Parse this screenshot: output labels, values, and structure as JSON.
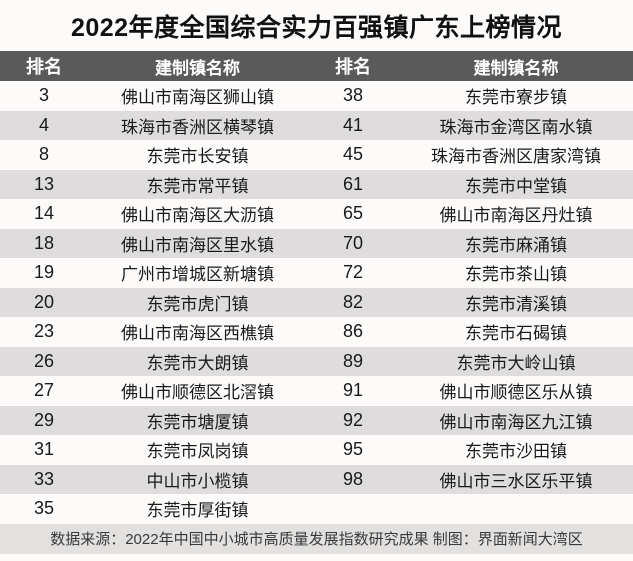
{
  "title": "2022年度全国综合实力百强镇广东上榜情况",
  "chart_data": {
    "type": "table",
    "title": "2022年度全国综合实力百强镇广东上榜情况",
    "columns": [
      "排名",
      "建制镇名称",
      "排名",
      "建制镇名称"
    ],
    "rows": [
      [
        "3",
        "佛山市南海区狮山镇",
        "38",
        "东莞市寮步镇"
      ],
      [
        "4",
        "珠海市香洲区横琴镇",
        "41",
        "珠海市金湾区南水镇"
      ],
      [
        "8",
        "东莞市长安镇",
        "45",
        "珠海市香洲区唐家湾镇"
      ],
      [
        "13",
        "东莞市常平镇",
        "61",
        "东莞市中堂镇"
      ],
      [
        "14",
        "佛山市南海区大沥镇",
        "65",
        "佛山市南海区丹灶镇"
      ],
      [
        "18",
        "佛山市南海区里水镇",
        "70",
        "东莞市麻涌镇"
      ],
      [
        "19",
        "广州市增城区新塘镇",
        "72",
        "东莞市茶山镇"
      ],
      [
        "20",
        "东莞市虎门镇",
        "82",
        "东莞市清溪镇"
      ],
      [
        "23",
        "佛山市南海区西樵镇",
        "86",
        "东莞市石碣镇"
      ],
      [
        "26",
        "东莞市大朗镇",
        "89",
        "东莞市大岭山镇"
      ],
      [
        "27",
        "佛山市顺德区北滘镇",
        "91",
        "佛山市顺德区乐从镇"
      ],
      [
        "29",
        "东莞市塘厦镇",
        "92",
        "佛山市南海区九江镇"
      ],
      [
        "31",
        "东莞市凤岗镇",
        "95",
        "东莞市沙田镇"
      ],
      [
        "33",
        "中山市小榄镇",
        "98",
        "佛山市三水区乐平镇"
      ],
      [
        "35",
        "东莞市厚街镇",
        "",
        ""
      ]
    ]
  },
  "footer": {
    "text": "数据来源：2022年中国中小城市高质量发展指数研究成果 制图：界面新闻大湾区"
  },
  "colors": {
    "page_bg": "#fcfbfa",
    "header_bg": "#5a5a5a",
    "header_text": "#ffffff",
    "row_alt_bg": "#dedcdc",
    "footer_bg": "#e3e1e0",
    "text": "#1a1a1a"
  }
}
